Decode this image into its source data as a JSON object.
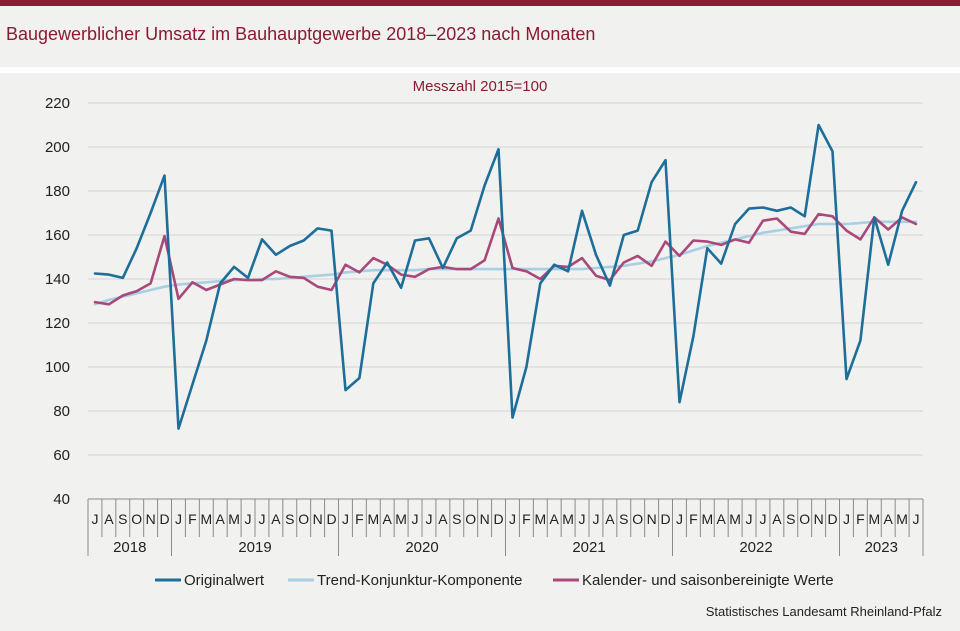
{
  "header": {
    "title": "Baugewerblicher Umsatz im Bauhauptgewerbe 2018–2023 nach Monaten",
    "subtitle": "Messzahl 2015=100",
    "source": "Statistisches Landesamt Rheinland-Pfalz"
  },
  "colors": {
    "brand": "#8c1a33",
    "originalwert": "#1d6e99",
    "trend": "#a9cfe3",
    "bereinigt": "#a9497a"
  },
  "chart_data": {
    "type": "line",
    "title": "Baugewerblicher Umsatz im Bauhauptgewerbe 2018–2023 nach Monaten",
    "subtitle": "Messzahl 2015=100",
    "ylim": [
      40,
      220
    ],
    "yticks": [
      "40",
      "60",
      "80",
      "100",
      "120",
      "140",
      "160",
      "180",
      "200",
      "220"
    ],
    "grid": "horizontal",
    "legend_position": "bottom",
    "x": [
      "J",
      "A",
      "S",
      "O",
      "N",
      "D",
      "J",
      "F",
      "M",
      "A",
      "M",
      "J",
      "J",
      "A",
      "S",
      "O",
      "N",
      "D",
      "J",
      "F",
      "M",
      "A",
      "M",
      "J",
      "J",
      "A",
      "S",
      "O",
      "N",
      "D",
      "J",
      "F",
      "M",
      "A",
      "M",
      "J",
      "J",
      "A",
      "S",
      "O",
      "N",
      "D",
      "J",
      "F",
      "M",
      "A",
      "M",
      "J",
      "J",
      "A",
      "S",
      "O",
      "N",
      "D",
      "J",
      "F",
      "M",
      "A",
      "M",
      "J"
    ],
    "year_groups": [
      {
        "label": "2018",
        "count": 6
      },
      {
        "label": "2019",
        "count": 12
      },
      {
        "label": "2020",
        "count": 12
      },
      {
        "label": "2021",
        "count": 12
      },
      {
        "label": "2022",
        "count": 12
      },
      {
        "label": "2023",
        "count": 6
      }
    ],
    "series": [
      {
        "name": "Originalwert",
        "color": "#1d6e99",
        "values": [
          142.5,
          142,
          140.5,
          154,
          170,
          187,
          72,
          92,
          112,
          138,
          145.5,
          140.5,
          158,
          151,
          155,
          157.5,
          163,
          162,
          89.5,
          95,
          138,
          147.5,
          136,
          157.5,
          158.5,
          145,
          158.5,
          162,
          182.5,
          199,
          77,
          100,
          138,
          146.5,
          143.5,
          171,
          151,
          137,
          160,
          162,
          184,
          194,
          84,
          114,
          154,
          147,
          165,
          172,
          172.5,
          171,
          172.5,
          168.5,
          210,
          198,
          94.5,
          112,
          168,
          146.5,
          171,
          184
        ]
      },
      {
        "name": "Trend-Konjunktur-Komponente",
        "color": "#a9cfe3",
        "values": [
          128.5,
          130.5,
          132,
          133.5,
          135,
          136.5,
          137.5,
          138,
          138.5,
          139,
          139.5,
          139.5,
          140,
          140,
          140.5,
          141,
          141.5,
          142,
          143,
          143.5,
          144,
          144,
          144,
          144,
          144.5,
          144.5,
          144.5,
          144.5,
          144.5,
          144.5,
          144.5,
          144.5,
          144.5,
          144.5,
          144.5,
          144.5,
          145,
          145.5,
          146,
          147,
          148,
          149.5,
          151,
          153,
          155,
          156.5,
          158,
          159.5,
          161,
          162,
          163,
          164,
          165,
          165,
          165,
          165.5,
          166,
          166,
          166,
          166
        ]
      },
      {
        "name": "Kalender- und saisonbereinigte Werte",
        "color": "#a9497a",
        "values": [
          129.5,
          128.5,
          132.5,
          134.5,
          138,
          159.5,
          131,
          138.5,
          135,
          137.5,
          140,
          139.5,
          139.5,
          143.5,
          141,
          140.5,
          136.5,
          135,
          146.5,
          143,
          149.5,
          146.5,
          142,
          141,
          144.5,
          145.5,
          144.5,
          144.5,
          148.5,
          167.5,
          145,
          143.5,
          140,
          146,
          145.5,
          149.5,
          141.5,
          139.5,
          147.5,
          150.5,
          146,
          157,
          150.5,
          157.5,
          157,
          155.5,
          158,
          156.5,
          166.5,
          167.5,
          161.5,
          160.5,
          169.5,
          168.5,
          162,
          158,
          168,
          162.5,
          168,
          165
        ]
      }
    ]
  }
}
